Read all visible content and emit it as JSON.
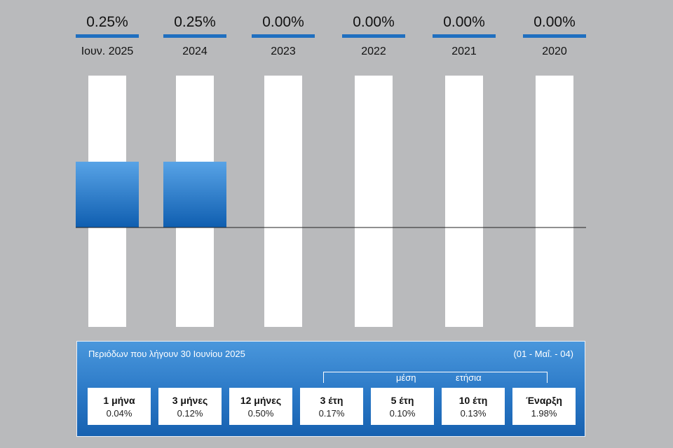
{
  "chart_data": {
    "type": "bar",
    "categories": [
      "Ιουν. 2025",
      "2024",
      "2023",
      "2022",
      "2021",
      "2020"
    ],
    "values": [
      0.25,
      0.25,
      0.0,
      0.0,
      0.0,
      0.0
    ],
    "value_labels": [
      "0.25%",
      "0.25%",
      "0.00%",
      "0.00%",
      "0.00%",
      "0.00%"
    ],
    "ylim": [
      -0.6,
      0.6
    ],
    "grid": false,
    "colors": {
      "bar": "#1f6fc0",
      "track": "#ffffff",
      "accent": "#1f6fc0",
      "baseline": "#222222"
    }
  },
  "panel": {
    "title": "Περιόδων που λήγουν 30 Ιουνίου 2025",
    "range": "(01 - Μαΐ. - 04)",
    "bracket_left": "μέση",
    "bracket_right": "ετήσια",
    "periods": [
      {
        "label": "1 μήνα",
        "value": "0.04%"
      },
      {
        "label": "3 μήνες",
        "value": "0.12%"
      },
      {
        "label": "12 μήνες",
        "value": "0.50%"
      },
      {
        "label": "3 έτη",
        "value": "0.17%"
      },
      {
        "label": "5 έτη",
        "value": "0.10%"
      },
      {
        "label": "10 έτη",
        "value": "0.13%"
      },
      {
        "label": "Έναρξη",
        "value": "1.98%"
      }
    ]
  }
}
